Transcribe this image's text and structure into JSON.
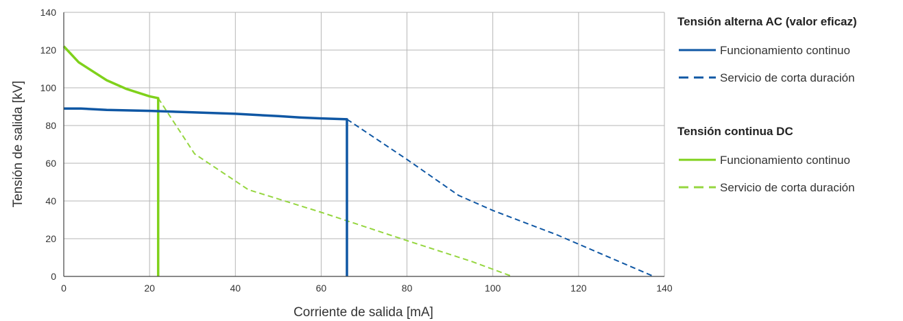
{
  "chart_data": {
    "type": "line",
    "title": "",
    "xlabel": "Corriente de salida [mA]",
    "ylabel": "Tensión de salida [kV]",
    "xlim": [
      0,
      140
    ],
    "ylim": [
      0,
      140
    ],
    "xticks": [
      "0",
      "20",
      "40",
      "60",
      "80",
      "100",
      "120",
      "140"
    ],
    "yticks": [
      "0",
      "20",
      "40",
      "60",
      "80",
      "100",
      "120",
      "140"
    ],
    "grid": true,
    "legend_position": "right",
    "legend_groups": [
      {
        "title": "Tensión alterna AC (valor eficaz)",
        "entries": [
          {
            "label": "Funcionamiento continuo",
            "series": "ac_cont"
          },
          {
            "label": "Servicio de corta duración",
            "series": "ac_short"
          }
        ]
      },
      {
        "title": "Tensión continua DC",
        "entries": [
          {
            "label": "Funcionamiento continuo",
            "series": "dc_cont"
          },
          {
            "label": "Servicio de corta duración",
            "series": "dc_short"
          }
        ]
      }
    ],
    "series": [
      {
        "id": "ac_cont",
        "style": "solid",
        "color": "#0f57a4",
        "points": [
          [
            0,
            89
          ],
          [
            4,
            89
          ],
          [
            10,
            88.3
          ],
          [
            20,
            87.8
          ],
          [
            30,
            87
          ],
          [
            40,
            86.2
          ],
          [
            50,
            85
          ],
          [
            55,
            84.3
          ],
          [
            60,
            83.8
          ],
          [
            66,
            83.3
          ],
          [
            66,
            0
          ]
        ]
      },
      {
        "id": "ac_short",
        "style": "dashed",
        "color": "#0f57a4",
        "points": [
          [
            66,
            83.3
          ],
          [
            80,
            62
          ],
          [
            92,
            43
          ],
          [
            100,
            35
          ],
          [
            115,
            22
          ],
          [
            137.5,
            0
          ]
        ]
      },
      {
        "id": "dc_cont",
        "style": "solid",
        "color": "#7fd11b",
        "points": [
          [
            0,
            122
          ],
          [
            3.5,
            113.5
          ],
          [
            10,
            104
          ],
          [
            14.5,
            99.5
          ],
          [
            20,
            95.5
          ],
          [
            22,
            94.5
          ],
          [
            22,
            0
          ]
        ]
      },
      {
        "id": "dc_short",
        "style": "dashed",
        "color": "#95d63f",
        "points": [
          [
            22,
            94.5
          ],
          [
            30.5,
            65
          ],
          [
            43,
            46
          ],
          [
            60,
            34
          ],
          [
            80,
            19
          ],
          [
            95,
            8
          ],
          [
            104.5,
            0
          ]
        ]
      }
    ]
  }
}
